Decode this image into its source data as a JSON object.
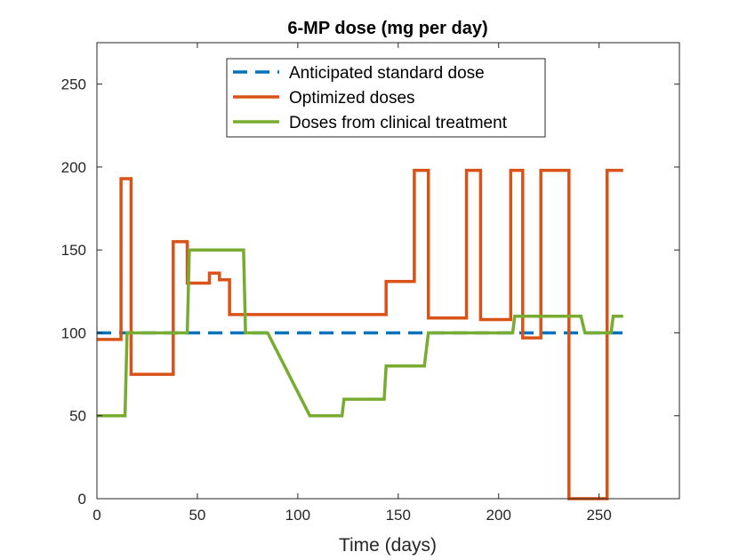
{
  "chart_data": {
    "type": "line",
    "title": "6-MP dose (mg per day)",
    "xlabel": "Time (days)",
    "ylabel": "",
    "xlim": [
      0,
      290
    ],
    "ylim": [
      0,
      275
    ],
    "xticks": [
      0,
      50,
      100,
      150,
      200,
      250
    ],
    "yticks": [
      0,
      50,
      100,
      150,
      200,
      250
    ],
    "grid": false,
    "legend_position": "top-center",
    "series": [
      {
        "name": "Anticipated standard dose",
        "color": "#0072BD",
        "style": "dashed",
        "x": [
          0,
          262
        ],
        "y": [
          100,
          100
        ]
      },
      {
        "name": "Optimized doses",
        "color": "#D95319",
        "style": "solid",
        "x": [
          0,
          12,
          12,
          17,
          17,
          38,
          38,
          45,
          45,
          53,
          53,
          56,
          56,
          61,
          61,
          66,
          66,
          144,
          144,
          158,
          158,
          165,
          165,
          184,
          184,
          191,
          191,
          206,
          206,
          212,
          212,
          221,
          221,
          235,
          235,
          254,
          254,
          262
        ],
        "y": [
          96,
          96,
          193,
          193,
          75,
          75,
          155,
          155,
          130,
          130,
          130,
          130,
          136,
          136,
          132,
          132,
          111,
          111,
          131,
          131,
          198,
          198,
          109,
          109,
          198,
          198,
          108,
          108,
          198,
          198,
          97,
          97,
          198,
          198,
          0,
          0,
          198,
          198
        ]
      },
      {
        "name": "Doses from clinical treatment",
        "color": "#77AC30",
        "style": "solid",
        "x": [
          0,
          14,
          15,
          45,
          46,
          73,
          74,
          85,
          106,
          122,
          123,
          143,
          144,
          163,
          165,
          207,
          208,
          241,
          243,
          256,
          257,
          262
        ],
        "y": [
          50,
          50,
          100,
          100,
          150,
          150,
          100,
          100,
          50,
          50,
          60,
          60,
          80,
          80,
          100,
          100,
          110,
          110,
          100,
          100,
          110,
          110
        ]
      }
    ]
  }
}
